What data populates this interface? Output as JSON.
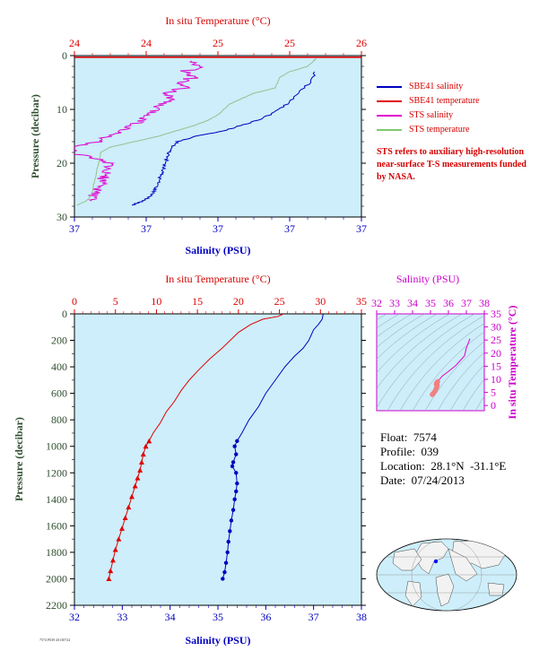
{
  "colors": {
    "plot_bg": "#cdeefa",
    "salinity": "#0000c0",
    "temperature": "#e00000",
    "sts_salinity": "#e000d0",
    "sts_temperature": "#98c090",
    "ts_label": "#cc00cc",
    "axis_dark": "#2e4d2e"
  },
  "legend": {
    "items": [
      {
        "label": "SBE41 salinity",
        "color": "#0000c0"
      },
      {
        "label": "SBE41 temperature",
        "color": "#e00000"
      },
      {
        "label": "STS salinity",
        "color": "#e000d0"
      },
      {
        "label": "STS temperature",
        "color": "#80c870"
      }
    ],
    "note": "STS refers to auxiliary high-resolution near-surface T-S measurements funded by NASA."
  },
  "info": {
    "float": "Float:  7574",
    "profile": "Profile:  039",
    "location": "Location:  28.1°N  -31.1°E",
    "date": "Date:  07/24/2013"
  },
  "footer_small": "7574 P039 20130724",
  "chart_data": [
    {
      "type": "line",
      "id": "surface-profile",
      "title": "",
      "top_axis_label": "In situ Temperature (°C)",
      "bottom_axis_label": "Salinity (PSU)",
      "ylabel": "Pressure (decibar)",
      "ylim": [
        0,
        30
      ],
      "y_reversed": true,
      "y_ticks": [
        "0",
        "10",
        "20",
        "30"
      ],
      "temp_ticks": [
        "24",
        "24",
        "25",
        "25",
        "26"
      ],
      "sal_ticks": [
        "37",
        "37",
        "37",
        "37",
        "37"
      ],
      "temp_range": [
        23.6,
        26.0
      ],
      "sal_range": [
        36.8,
        37.3
      ],
      "series": [
        {
          "name": "SBE41 salinity",
          "axis": "salinity",
          "points": [
            [
              37.22,
              3
            ],
            [
              37.21,
              5
            ],
            [
              37.19,
              7
            ],
            [
              37.17,
              9
            ],
            [
              37.15,
              10.5
            ],
            [
              37.12,
              12
            ],
            [
              37.09,
              13
            ],
            [
              37.06,
              14
            ],
            [
              37.01,
              15
            ],
            [
              36.98,
              16
            ],
            [
              36.97,
              17
            ],
            [
              36.965,
              18
            ],
            [
              36.962,
              19
            ],
            [
              36.958,
              20
            ],
            [
              36.955,
              21
            ],
            [
              36.952,
              22
            ],
            [
              36.948,
              23
            ],
            [
              36.945,
              24
            ],
            [
              36.94,
              25
            ],
            [
              36.935,
              26
            ],
            [
              36.92,
              27
            ],
            [
              36.9,
              27.8
            ]
          ]
        },
        {
          "name": "SBE41 temperature",
          "axis": "temperature",
          "points": [
            [
              26.0,
              0.3
            ],
            [
              23.6,
              0.3
            ]
          ]
        },
        {
          "name": "STS salinity",
          "axis": "salinity",
          "points": [
            [
              37.0,
              1
            ],
            [
              37.02,
              2
            ],
            [
              36.99,
              3
            ],
            [
              37.01,
              4
            ],
            [
              36.98,
              5
            ],
            [
              36.99,
              6
            ],
            [
              36.96,
              7
            ],
            [
              36.97,
              8
            ],
            [
              36.95,
              9
            ],
            [
              36.94,
              10
            ],
            [
              36.93,
              11
            ],
            [
              36.92,
              12
            ],
            [
              36.9,
              13
            ],
            [
              36.88,
              14
            ],
            [
              36.86,
              15
            ],
            [
              36.84,
              16
            ],
            [
              36.8,
              17
            ],
            [
              36.79,
              18
            ],
            [
              36.83,
              19
            ],
            [
              36.86,
              20
            ],
            [
              36.855,
              21
            ],
            [
              36.852,
              22
            ],
            [
              36.85,
              23
            ],
            [
              36.845,
              24
            ],
            [
              36.84,
              25
            ],
            [
              36.835,
              26
            ],
            [
              36.83,
              27
            ]
          ]
        },
        {
          "name": "STS temperature",
          "axis": "temperature",
          "points": [
            [
              25.62,
              0.5
            ],
            [
              25.6,
              1
            ],
            [
              25.55,
              2
            ],
            [
              25.4,
              3
            ],
            [
              25.32,
              4
            ],
            [
              25.3,
              5
            ],
            [
              25.28,
              6
            ],
            [
              25.1,
              7
            ],
            [
              25.0,
              8
            ],
            [
              24.9,
              9
            ],
            [
              24.85,
              10
            ],
            [
              24.8,
              11
            ],
            [
              24.72,
              12
            ],
            [
              24.6,
              13
            ],
            [
              24.45,
              14
            ],
            [
              24.3,
              15
            ],
            [
              24.1,
              16
            ],
            [
              23.9,
              17
            ],
            [
              23.82,
              18
            ],
            [
              23.8,
              20
            ],
            [
              23.78,
              22
            ],
            [
              23.76,
              24
            ],
            [
              23.74,
              26
            ],
            [
              23.7,
              27
            ],
            [
              23.62,
              27.8
            ]
          ]
        }
      ]
    },
    {
      "type": "line",
      "id": "full-profile",
      "title": "",
      "top_axis_label": "In situ Temperature (°C)",
      "bottom_axis_label": "Salinity (PSU)",
      "ylabel": "Pressure (decibar)",
      "ylim": [
        0,
        2200
      ],
      "y_reversed": true,
      "y_ticks": [
        "0",
        "200",
        "400",
        "600",
        "800",
        "1000",
        "1200",
        "1400",
        "1600",
        "1800",
        "2000",
        "2200"
      ],
      "temp_ticks": [
        "0",
        "5",
        "10",
        "15",
        "20",
        "25",
        "30",
        "35"
      ],
      "sal_ticks": [
        "32",
        "33",
        "34",
        "35",
        "36",
        "37",
        "38"
      ],
      "temp_range": [
        0,
        35
      ],
      "sal_range": [
        32,
        38
      ],
      "series": [
        {
          "name": "Salinity",
          "axis": "salinity",
          "marker": "circle",
          "points": [
            [
              37.2,
              0
            ],
            [
              37.18,
              40
            ],
            [
              37.1,
              80
            ],
            [
              37.0,
              120
            ],
            [
              36.95,
              160
            ],
            [
              36.9,
              200
            ],
            [
              36.78,
              260
            ],
            [
              36.6,
              320
            ],
            [
              36.4,
              400
            ],
            [
              36.2,
              500
            ],
            [
              36.0,
              600
            ],
            [
              35.85,
              700
            ],
            [
              35.65,
              800
            ],
            [
              35.5,
              900
            ],
            [
              35.4,
              960
            ],
            [
              35.35,
              1000
            ],
            [
              35.38,
              1060
            ],
            [
              35.32,
              1120
            ],
            [
              35.3,
              1150
            ],
            [
              35.38,
              1200
            ],
            [
              35.4,
              1280
            ],
            [
              35.38,
              1340
            ],
            [
              35.35,
              1400
            ],
            [
              35.32,
              1480
            ],
            [
              35.28,
              1560
            ],
            [
              35.25,
              1640
            ],
            [
              35.22,
              1720
            ],
            [
              35.2,
              1800
            ],
            [
              35.17,
              1880
            ],
            [
              35.14,
              1950
            ],
            [
              35.1,
              2000
            ]
          ]
        },
        {
          "name": "Temperature",
          "axis": "temperature",
          "marker": "triangle",
          "points": [
            [
              25.5,
              0
            ],
            [
              24.8,
              20
            ],
            [
              23.0,
              40
            ],
            [
              21.5,
              80
            ],
            [
              20.0,
              140
            ],
            [
              19.0,
              200
            ],
            [
              18.0,
              260
            ],
            [
              16.5,
              340
            ],
            [
              15.2,
              420
            ],
            [
              14.0,
              500
            ],
            [
              13.0,
              580
            ],
            [
              12.2,
              660
            ],
            [
              11.2,
              740
            ],
            [
              10.5,
              820
            ],
            [
              9.6,
              900
            ],
            [
              9.1,
              960
            ],
            [
              8.7,
              1000
            ],
            [
              8.4,
              1060
            ],
            [
              8.2,
              1120
            ],
            [
              8.0,
              1180
            ],
            [
              7.7,
              1240
            ],
            [
              7.4,
              1300
            ],
            [
              7.0,
              1380
            ],
            [
              6.6,
              1460
            ],
            [
              6.2,
              1540
            ],
            [
              5.8,
              1620
            ],
            [
              5.4,
              1700
            ],
            [
              5.0,
              1780
            ],
            [
              4.7,
              1860
            ],
            [
              4.4,
              1940
            ],
            [
              4.2,
              2000
            ]
          ]
        }
      ]
    },
    {
      "type": "scatter",
      "id": "ts-diagram",
      "title": "",
      "top_axis_label": "Salinity (PSU)",
      "right_axis_label": "In situ Temperature (°C)",
      "sal_ticks": [
        "32",
        "33",
        "34",
        "35",
        "36",
        "37",
        "38"
      ],
      "temp_ticks": [
        "0",
        "5",
        "10",
        "15",
        "20",
        "25",
        "30",
        "35"
      ],
      "sal_range": [
        32,
        38
      ],
      "temp_range": [
        -2,
        35
      ],
      "series": [
        {
          "name": "T-S",
          "points": [
            [
              37.2,
              25.5
            ],
            [
              37.0,
              22.0
            ],
            [
              36.9,
              19.0
            ],
            [
              36.4,
              15.2
            ],
            [
              36.0,
              13.0
            ],
            [
              35.65,
              11.2
            ],
            [
              35.4,
              9.1
            ],
            [
              35.35,
              8.7
            ],
            [
              35.32,
              8.2
            ],
            [
              35.38,
              7.7
            ],
            [
              35.35,
              7.0
            ],
            [
              35.3,
              6.2
            ],
            [
              35.25,
              5.4
            ],
            [
              35.2,
              5.0
            ],
            [
              35.14,
              4.4
            ],
            [
              35.1,
              4.2
            ]
          ]
        }
      ]
    }
  ]
}
